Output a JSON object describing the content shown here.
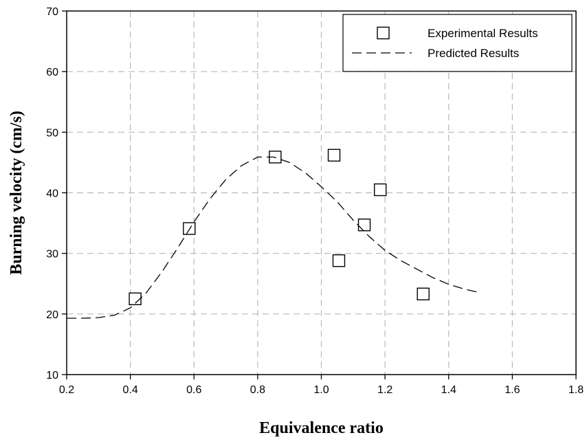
{
  "chart_data": {
    "type": "scatter",
    "title": "",
    "xlabel": "Equivalence ratio",
    "ylabel": "Burning velocity (cm/s)",
    "xlim": [
      0.2,
      1.8
    ],
    "ylim": [
      10,
      70
    ],
    "x_ticks": [
      "0.2",
      "0.4",
      "0.6",
      "0.8",
      "1.0",
      "1.2",
      "1.4",
      "1.6",
      "1.8"
    ],
    "y_ticks": [
      "10",
      "20",
      "30",
      "40",
      "50",
      "60",
      "70"
    ],
    "grid": true,
    "legend_position": "top-right",
    "series": [
      {
        "name": "Experimental Results",
        "kind": "markers",
        "marker": "open-square",
        "color": "#000000",
        "points": [
          [
            0.415,
            22.5
          ],
          [
            0.585,
            34.1
          ],
          [
            0.855,
            45.9
          ],
          [
            1.04,
            46.2
          ],
          [
            1.055,
            28.8
          ],
          [
            1.135,
            34.7
          ],
          [
            1.185,
            40.5
          ],
          [
            1.32,
            23.3
          ]
        ]
      },
      {
        "name": "Predicted Results",
        "kind": "line",
        "line_style": "dashed",
        "color": "#000000",
        "points": [
          [
            0.2,
            19.3
          ],
          [
            0.25,
            19.3
          ],
          [
            0.3,
            19.4
          ],
          [
            0.35,
            19.8
          ],
          [
            0.4,
            21.0
          ],
          [
            0.45,
            23.5
          ],
          [
            0.5,
            27.0
          ],
          [
            0.55,
            31.0
          ],
          [
            0.6,
            35.2
          ],
          [
            0.65,
            39.0
          ],
          [
            0.7,
            42.2
          ],
          [
            0.75,
            44.5
          ],
          [
            0.8,
            45.9
          ],
          [
            0.85,
            45.9
          ],
          [
            0.9,
            45.0
          ],
          [
            0.95,
            43.3
          ],
          [
            1.0,
            41.0
          ],
          [
            1.05,
            38.5
          ],
          [
            1.1,
            35.5
          ],
          [
            1.15,
            32.8
          ],
          [
            1.2,
            30.5
          ],
          [
            1.25,
            28.8
          ],
          [
            1.3,
            27.4
          ],
          [
            1.35,
            26.0
          ],
          [
            1.4,
            24.9
          ],
          [
            1.45,
            24.1
          ],
          [
            1.5,
            23.5
          ]
        ]
      }
    ]
  }
}
